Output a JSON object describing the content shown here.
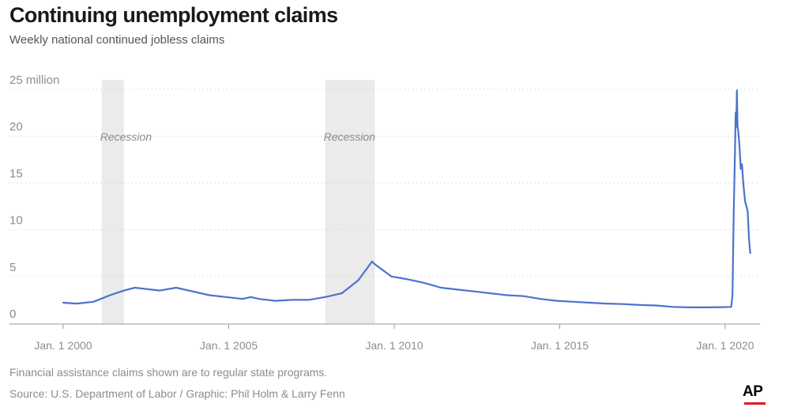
{
  "title": "Continuing unemployment claims",
  "subtitle": "Weekly national continued jobless claims",
  "note": "Financial assistance claims shown are to regular state programs.",
  "source": "Source: U.S. Department of Labor / Graphic: Phil Holm & Larry Fenn",
  "logo_text": "AP",
  "colors": {
    "line": "#4a73cc",
    "recession": "#ebebeb",
    "grid": "#c8c8c8",
    "text": "#8c8c8c"
  },
  "chart_data": {
    "type": "line",
    "title": "Continuing unemployment claims",
    "subtitle": "Weekly national continued jobless claims",
    "xlabel": "",
    "ylabel": "",
    "ylim": [
      0,
      25
    ],
    "y_ticks": [
      0,
      5,
      10,
      15,
      20,
      25
    ],
    "y_tick_labels": [
      "0",
      "5",
      "10",
      "15",
      "20",
      "25 million"
    ],
    "x_ticks": [
      "2000-01-01",
      "2005-01-01",
      "2010-01-01",
      "2015-01-01",
      "2020-01-01"
    ],
    "x_tick_labels": [
      "Jan. 1 2000",
      "Jan. 1 2005",
      "Jan. 1 2010",
      "Jan. 1 2015",
      "Jan. 1 2020"
    ],
    "grid": "horizontal dotted",
    "recessions": [
      {
        "label": "Recession",
        "start": "2001-03-01",
        "end": "2001-11-01"
      },
      {
        "label": "Recession",
        "start": "2007-12-01",
        "end": "2009-06-01"
      }
    ],
    "series": [
      {
        "points": [
          [
            "2000-01-01",
            2.2
          ],
          [
            "2000-06-01",
            2.1
          ],
          [
            "2000-12-01",
            2.3
          ],
          [
            "2001-06-01",
            3.0
          ],
          [
            "2001-11-01",
            3.5
          ],
          [
            "2002-03-01",
            3.8
          ],
          [
            "2002-06-01",
            3.7
          ],
          [
            "2002-12-01",
            3.5
          ],
          [
            "2003-06-01",
            3.8
          ],
          [
            "2003-12-01",
            3.4
          ],
          [
            "2004-06-01",
            3.0
          ],
          [
            "2004-12-01",
            2.8
          ],
          [
            "2005-06-01",
            2.6
          ],
          [
            "2005-09-01",
            2.8
          ],
          [
            "2005-12-01",
            2.6
          ],
          [
            "2006-06-01",
            2.4
          ],
          [
            "2006-12-01",
            2.5
          ],
          [
            "2007-06-01",
            2.5
          ],
          [
            "2007-12-01",
            2.8
          ],
          [
            "2008-06-01",
            3.2
          ],
          [
            "2008-12-01",
            4.6
          ],
          [
            "2009-05-01",
            6.6
          ],
          [
            "2009-06-01",
            6.3
          ],
          [
            "2009-12-01",
            5.0
          ],
          [
            "2010-06-01",
            4.7
          ],
          [
            "2010-12-01",
            4.3
          ],
          [
            "2011-06-01",
            3.8
          ],
          [
            "2011-12-01",
            3.6
          ],
          [
            "2012-06-01",
            3.4
          ],
          [
            "2012-12-01",
            3.2
          ],
          [
            "2013-06-01",
            3.0
          ],
          [
            "2013-12-01",
            2.9
          ],
          [
            "2014-06-01",
            2.6
          ],
          [
            "2014-12-01",
            2.4
          ],
          [
            "2015-06-01",
            2.3
          ],
          [
            "2015-12-01",
            2.2
          ],
          [
            "2016-06-01",
            2.1
          ],
          [
            "2016-12-01",
            2.05
          ],
          [
            "2017-06-01",
            1.95
          ],
          [
            "2017-12-01",
            1.9
          ],
          [
            "2018-06-01",
            1.75
          ],
          [
            "2018-12-01",
            1.7
          ],
          [
            "2019-06-01",
            1.7
          ],
          [
            "2019-12-01",
            1.72
          ],
          [
            "2020-03-07",
            1.75
          ],
          [
            "2020-03-21",
            3.0
          ],
          [
            "2020-04-04",
            12.0
          ],
          [
            "2020-04-18",
            18.5
          ],
          [
            "2020-04-25",
            22.5
          ],
          [
            "2020-05-02",
            21.0
          ],
          [
            "2020-05-09",
            24.9
          ],
          [
            "2020-05-16",
            21.0
          ],
          [
            "2020-05-23",
            20.6
          ],
          [
            "2020-06-06",
            19.0
          ],
          [
            "2020-06-20",
            16.5
          ],
          [
            "2020-07-04",
            17.0
          ],
          [
            "2020-07-18",
            15.0
          ],
          [
            "2020-08-08",
            13.0
          ],
          [
            "2020-08-22",
            12.5
          ],
          [
            "2020-09-05",
            12.0
          ],
          [
            "2020-09-19",
            9.0
          ],
          [
            "2020-10-03",
            7.5
          ]
        ]
      }
    ]
  }
}
